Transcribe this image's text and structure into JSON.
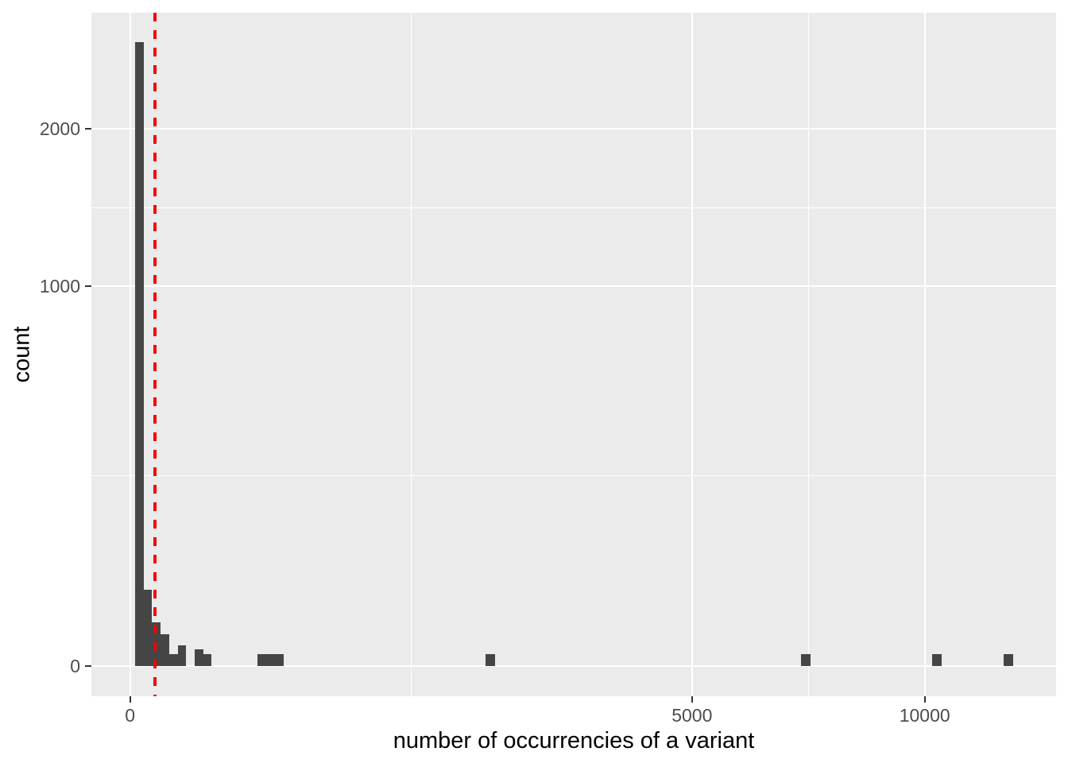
{
  "figure": {
    "background": "#FFFFFF"
  },
  "panel": {
    "background": "#EBEBEB",
    "grid_color": "#FFFFFF"
  },
  "axis_x": {
    "title": "number of occurrencies of a variant",
    "ticks": [
      {
        "value": 0,
        "label": "0"
      },
      {
        "value": 5000,
        "label": "5000"
      },
      {
        "value": 10000,
        "label": "10000"
      }
    ],
    "minor_breaks": [
      1250,
      7286
    ],
    "scale": "sqrt"
  },
  "axis_y": {
    "title": "count",
    "ticks": [
      {
        "value": 0,
        "label": "0"
      },
      {
        "value": 1000,
        "label": "1000"
      },
      {
        "value": 2000,
        "label": "2000"
      }
    ],
    "minor_breaks": [
      250,
      1457
    ],
    "scale": "sqrt"
  },
  "chart_data": {
    "type": "bar",
    "subtype": "histogram",
    "title": "",
    "xlabel": "number of occurrencies of a variant",
    "ylabel": "count",
    "x_scale": "sqrt",
    "y_scale": "sqrt",
    "xlim": [
      0,
      13578
    ],
    "ylim": [
      0,
      2977
    ],
    "grid": true,
    "bar_color": "#454545",
    "bars": [
      {
        "x_min": 0.4,
        "x_max": 2.9,
        "count": 2700
      },
      {
        "x_min": 2.9,
        "x_max": 7.7,
        "count": 40
      },
      {
        "x_min": 7.7,
        "x_max": 14.7,
        "count": 13
      },
      {
        "x_min": 14.7,
        "x_max": 24.1,
        "count": 7
      },
      {
        "x_min": 24.1,
        "x_max": 35.8,
        "count": 1
      },
      {
        "x_min": 35.8,
        "x_max": 49.7,
        "count": 3
      },
      {
        "x_min": 65.9,
        "x_max": 84.5,
        "count": 2
      },
      {
        "x_min": 84.5,
        "x_max": 105,
        "count": 1
      },
      {
        "x_min": 257,
        "x_max": 375,
        "count": 1
      },
      {
        "x_min": 2001,
        "x_max": 2107,
        "count": 1
      },
      {
        "x_min": 7133,
        "x_max": 7332,
        "count": 1
      },
      {
        "x_min": 10193,
        "x_max": 10430,
        "count": 1
      },
      {
        "x_min": 12078,
        "x_max": 12343,
        "count": 1
      }
    ],
    "reference_line": {
      "x": 10,
      "orientation": "vertical",
      "style": "dashed",
      "color": "#F80000"
    }
  }
}
